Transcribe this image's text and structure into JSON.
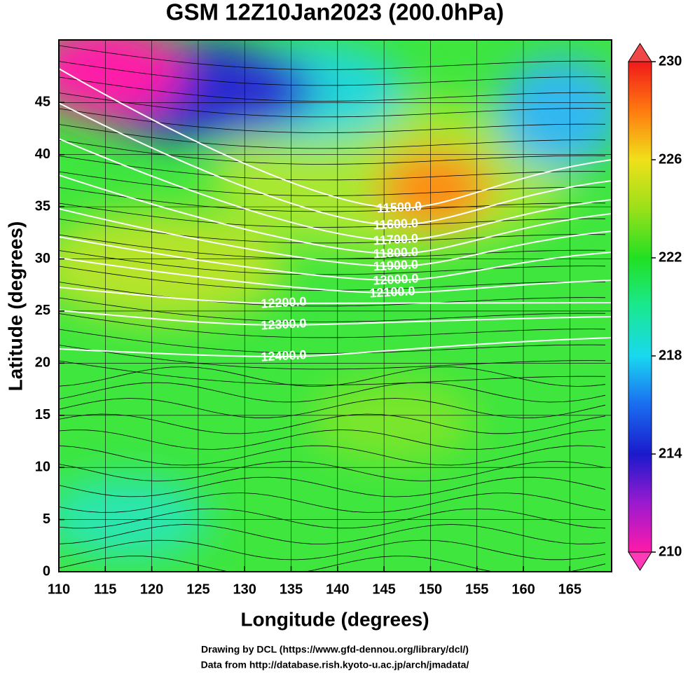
{
  "title": "GSM 12Z10Jan2023 (200.0hPa)",
  "x_axis": {
    "label": "Longitude (degrees)",
    "lim": [
      110,
      169.5
    ],
    "ticks": [
      110,
      115,
      120,
      125,
      130,
      135,
      140,
      145,
      150,
      155,
      160,
      165
    ]
  },
  "y_axis": {
    "label": "Latitude  (degrees)",
    "lim": [
      0,
      51
    ],
    "ticks": [
      0,
      5,
      10,
      15,
      20,
      25,
      30,
      35,
      40,
      45
    ]
  },
  "colorbar": {
    "lim": [
      210,
      230
    ],
    "ticks": [
      210,
      214,
      218,
      222,
      226,
      230
    ]
  },
  "contour_labels": [
    "11500.0",
    "11600.0",
    "11700.0",
    "11800.0",
    "11900.0",
    "12000.0",
    "12100.0",
    "12200.0",
    "12300.0",
    "12400.0"
  ],
  "credits": [
    "Drawing by DCL (https://www.gfd-dennou.org/library/dcl/)",
    "Data from http://database.rish.kyoto-u.ac.jp/arch/jmadata/"
  ]
}
